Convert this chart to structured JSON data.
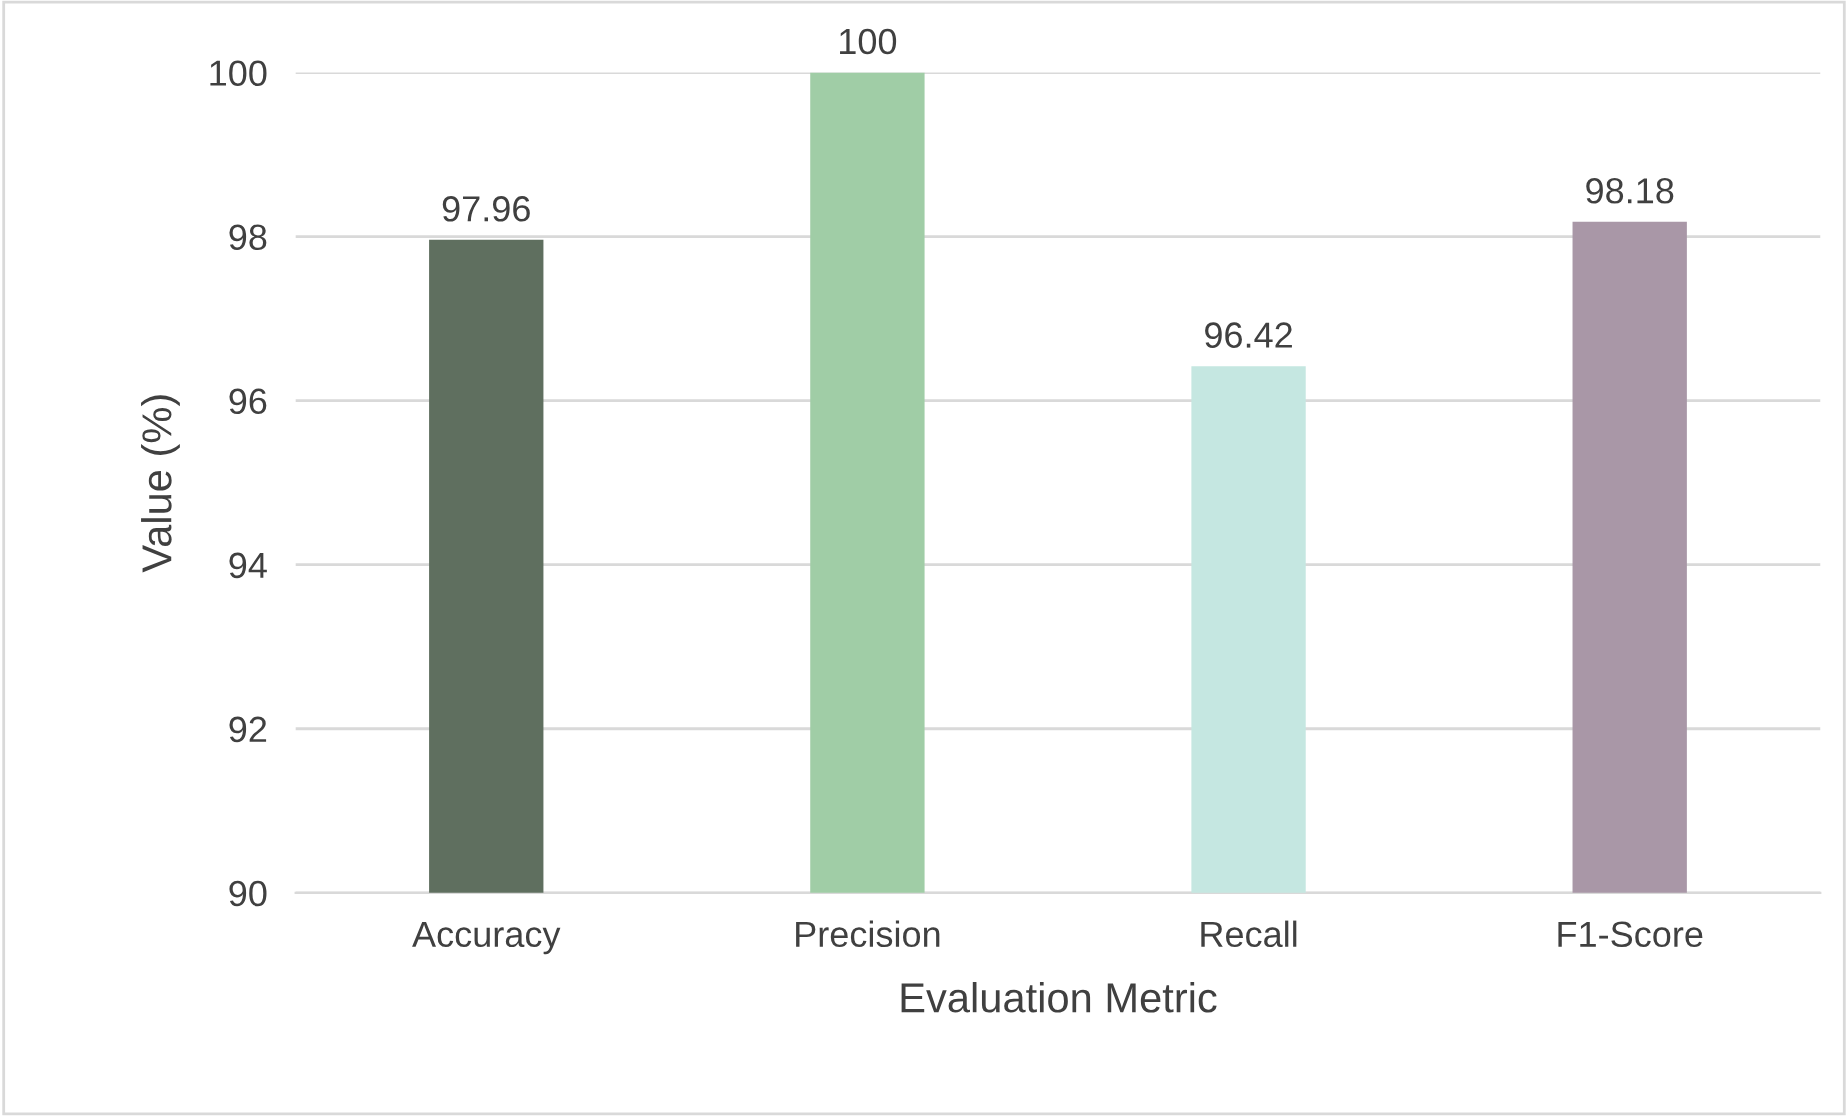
{
  "chart_data": {
    "type": "bar",
    "xlabel": "Evaluation Metric",
    "ylabel": "Value (%)",
    "categories": [
      "Accuracy",
      "Precision",
      "Recall",
      "F1-Score"
    ],
    "values": [
      97.96,
      100,
      96.42,
      98.18
    ],
    "colors": [
      "#5f6f5f",
      "#a0cda6",
      "#c5e7e1",
      "#a997a7"
    ],
    "ylim": [
      90,
      100
    ],
    "yticks": [
      90,
      92,
      94,
      96,
      98,
      100
    ],
    "grid": "y",
    "data_labels": true
  }
}
